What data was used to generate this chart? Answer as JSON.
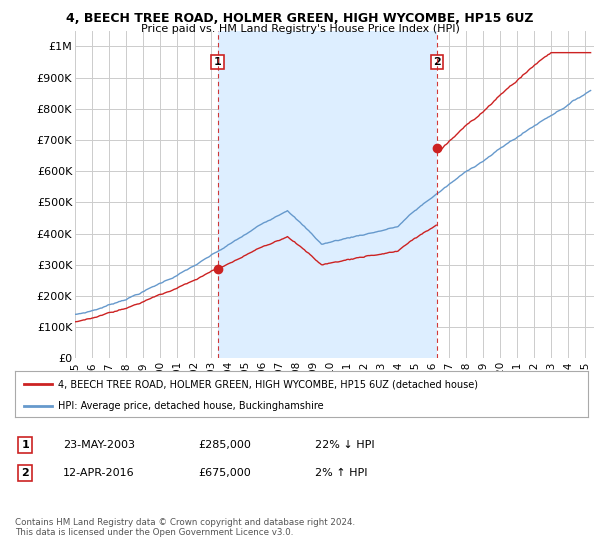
{
  "title": "4, BEECH TREE ROAD, HOLMER GREEN, HIGH WYCOMBE, HP15 6UZ",
  "subtitle": "Price paid vs. HM Land Registry's House Price Index (HPI)",
  "ylabel_ticks": [
    "£0",
    "£100K",
    "£200K",
    "£300K",
    "£400K",
    "£500K",
    "£600K",
    "£700K",
    "£800K",
    "£900K",
    "£1M"
  ],
  "ytick_vals": [
    0,
    100000,
    200000,
    300000,
    400000,
    500000,
    600000,
    700000,
    800000,
    900000,
    1000000
  ],
  "ylim": [
    0,
    1050000
  ],
  "xlim_start": 1995.0,
  "xlim_end": 2025.5,
  "background_color": "#ffffff",
  "plot_bg_color": "#ffffff",
  "grid_color": "#cccccc",
  "shade_color": "#ddeeff",
  "hpi_color": "#6699cc",
  "price_color": "#cc2222",
  "transaction1": {
    "date_num": 2003.39,
    "price": 285000,
    "label": "1"
  },
  "transaction2": {
    "date_num": 2016.28,
    "price": 675000,
    "label": "2"
  },
  "legend_house_label": "4, BEECH TREE ROAD, HOLMER GREEN, HIGH WYCOMBE, HP15 6UZ (detached house)",
  "legend_hpi_label": "HPI: Average price, detached house, Buckinghamshire",
  "footer": "Contains HM Land Registry data © Crown copyright and database right 2024.\nThis data is licensed under the Open Government Licence v3.0.",
  "table_row1": [
    "1",
    "23-MAY-2003",
    "£285,000",
    "22% ↓ HPI"
  ],
  "table_row2": [
    "2",
    "12-APR-2016",
    "£675,000",
    "2% ↑ HPI"
  ],
  "xtick_years": [
    1995,
    1996,
    1997,
    1998,
    1999,
    2000,
    2001,
    2002,
    2003,
    2004,
    2005,
    2006,
    2007,
    2008,
    2009,
    2010,
    2011,
    2012,
    2013,
    2014,
    2015,
    2016,
    2017,
    2018,
    2019,
    2020,
    2021,
    2022,
    2023,
    2024,
    2025
  ]
}
